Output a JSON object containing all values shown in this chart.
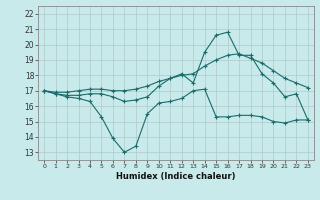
{
  "xlabel": "Humidex (Indice chaleur)",
  "xlim": [
    -0.5,
    23.5
  ],
  "ylim": [
    12.5,
    22.5
  ],
  "xticks": [
    0,
    1,
    2,
    3,
    4,
    5,
    6,
    7,
    8,
    9,
    10,
    11,
    12,
    13,
    14,
    15,
    16,
    17,
    18,
    19,
    20,
    21,
    22,
    23
  ],
  "yticks": [
    13,
    14,
    15,
    16,
    17,
    18,
    19,
    20,
    21,
    22
  ],
  "background_color": "#c8eaea",
  "grid_color": "#b0c8c8",
  "line_color": "#1a6b6b",
  "line1_x": [
    0,
    1,
    2,
    3,
    4,
    5,
    6,
    7,
    8,
    9,
    10,
    11,
    12,
    13,
    14,
    15,
    16,
    17,
    18,
    19,
    20,
    21,
    22,
    23
  ],
  "line1_y": [
    17.0,
    16.8,
    16.6,
    16.5,
    16.3,
    15.3,
    13.9,
    13.0,
    13.4,
    15.5,
    16.2,
    16.3,
    16.5,
    17.0,
    17.1,
    15.3,
    15.3,
    15.4,
    15.4,
    15.3,
    15.0,
    14.9,
    15.1,
    15.1
  ],
  "line2_x": [
    0,
    1,
    2,
    3,
    4,
    5,
    6,
    7,
    8,
    9,
    10,
    11,
    12,
    13,
    14,
    15,
    16,
    17,
    18,
    19,
    20,
    21,
    22,
    23
  ],
  "line2_y": [
    17.0,
    16.8,
    16.7,
    16.7,
    16.8,
    16.8,
    16.6,
    16.3,
    16.4,
    16.6,
    17.3,
    17.8,
    18.1,
    17.5,
    19.5,
    20.6,
    20.8,
    19.3,
    19.3,
    18.1,
    17.5,
    16.6,
    16.8,
    15.1
  ],
  "line3_x": [
    0,
    1,
    2,
    3,
    4,
    5,
    6,
    7,
    8,
    9,
    10,
    11,
    12,
    13,
    14,
    15,
    16,
    17,
    18,
    19,
    20,
    21,
    22,
    23
  ],
  "line3_y": [
    17.0,
    16.9,
    16.9,
    17.0,
    17.1,
    17.1,
    17.0,
    17.0,
    17.1,
    17.3,
    17.6,
    17.8,
    18.0,
    18.1,
    18.6,
    19.0,
    19.3,
    19.4,
    19.1,
    18.8,
    18.3,
    17.8,
    17.5,
    17.2
  ]
}
